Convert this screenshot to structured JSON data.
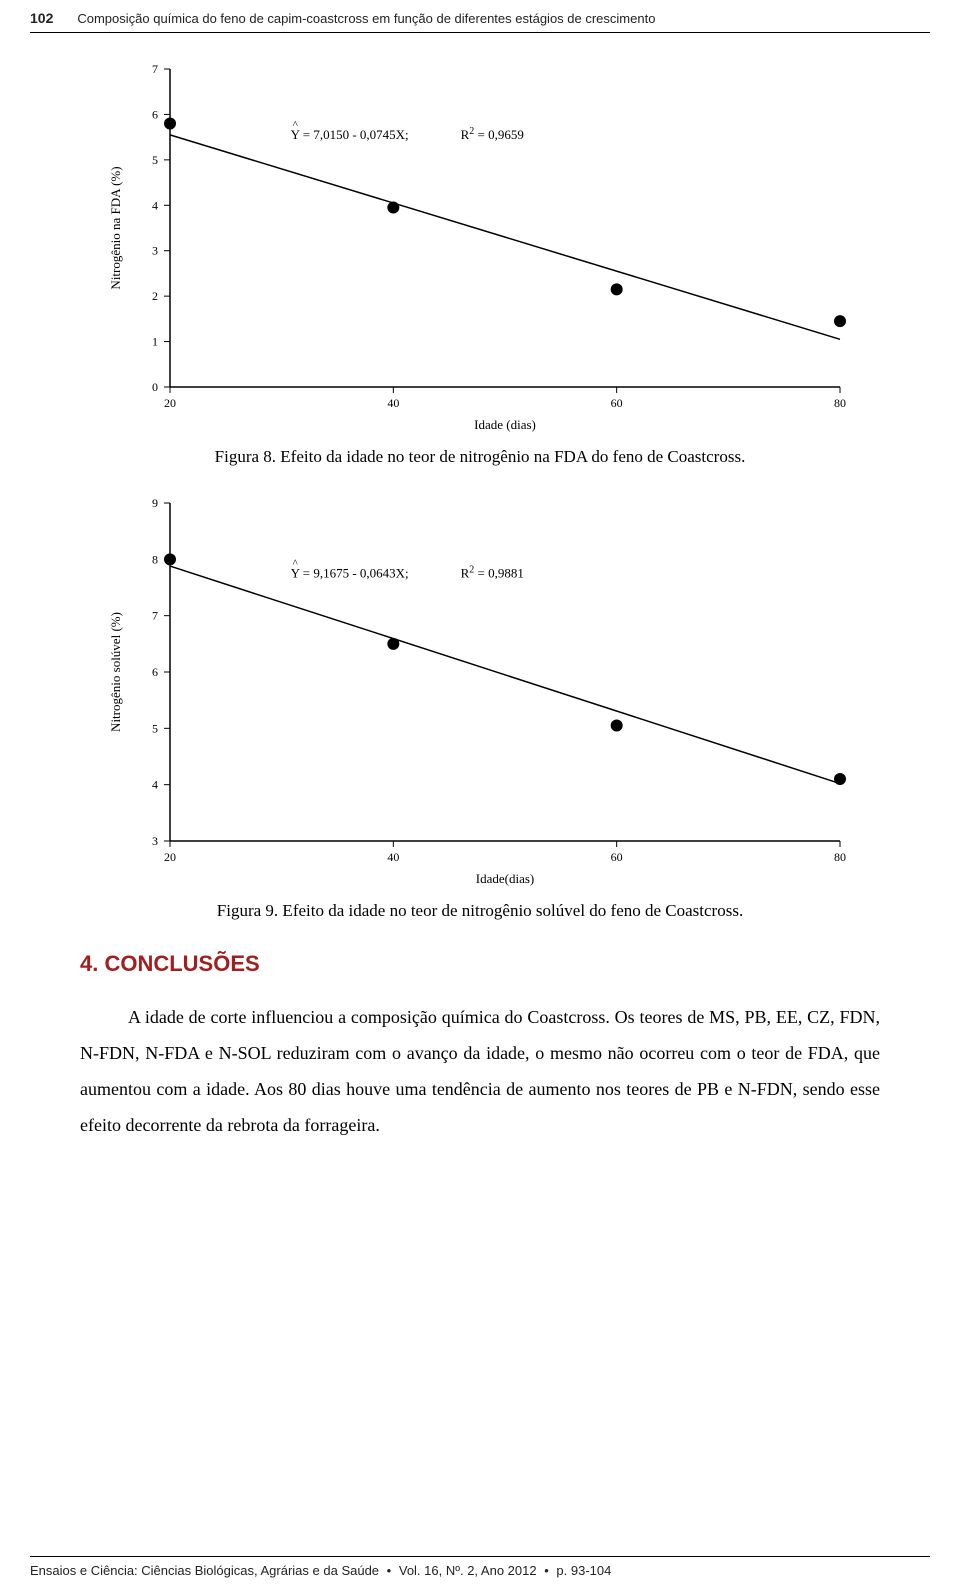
{
  "header": {
    "page_number": "102",
    "running_title": "Composição química do feno de capim-coastcross em função de diferentes estágios de crescimento"
  },
  "chart1": {
    "type": "scatter-with-regression-line",
    "title": "",
    "xlabel": "Idade (dias)",
    "ylabel": "Nitrogênio na FDA (%)",
    "label_fontsize": 13,
    "tick_fontsize": 12,
    "xlim": [
      20,
      80
    ],
    "ylim": [
      0,
      7
    ],
    "xticks": [
      20,
      40,
      60,
      80
    ],
    "yticks": [
      0,
      1,
      2,
      3,
      4,
      5,
      6,
      7
    ],
    "points": [
      {
        "x": 20,
        "y": 5.8
      },
      {
        "x": 40,
        "y": 3.95
      },
      {
        "x": 60,
        "y": 2.15
      },
      {
        "x": 80,
        "y": 1.45
      }
    ],
    "line": {
      "x1": 20,
      "y1": 5.55,
      "x2": 80,
      "y2": 1.05
    },
    "equation": "Y = 7,0150 - 0,0745X;",
    "hat_over": "Y",
    "r2_label": "R",
    "r2_sup": "2",
    "r2_rest": " = 0,9659",
    "eq_fontsize": 13,
    "marker_radius": 6,
    "marker_color": "#000000",
    "line_color": "#000000",
    "line_width": 1.5,
    "axis_color": "#000000",
    "background_color": "#ffffff",
    "caption": "Figura 8. Efeito da idade no teor de nitrogênio na FDA do feno de Coastcross."
  },
  "chart2": {
    "type": "scatter-with-regression-line",
    "title": "",
    "xlabel": "Idade(dias)",
    "ylabel": "Nitrogênio solúvel (%)",
    "label_fontsize": 13,
    "tick_fontsize": 12,
    "xlim": [
      20,
      80
    ],
    "ylim": [
      3,
      9
    ],
    "xticks": [
      20,
      40,
      60,
      80
    ],
    "yticks": [
      3,
      4,
      5,
      6,
      7,
      8,
      9
    ],
    "points": [
      {
        "x": 20,
        "y": 8.0
      },
      {
        "x": 40,
        "y": 6.5
      },
      {
        "x": 60,
        "y": 5.05
      },
      {
        "x": 80,
        "y": 4.1
      }
    ],
    "line": {
      "x1": 20,
      "y1": 7.88,
      "x2": 80,
      "y2": 4.02
    },
    "equation": "Y = 9,1675 - 0,0643X;",
    "hat_over": "Y",
    "r2_label": "R",
    "r2_sup": "2",
    "r2_rest": " = 0,9881",
    "eq_fontsize": 13,
    "marker_radius": 6,
    "marker_color": "#000000",
    "line_color": "#000000",
    "line_width": 1.5,
    "axis_color": "#000000",
    "background_color": "#ffffff",
    "caption": "Figura 9. Efeito da idade no teor de nitrogênio solúvel do feno de Coastcross."
  },
  "section": {
    "heading": "4. CONCLUSÕES",
    "heading_color": "#a02020",
    "paragraph": "A idade de corte influenciou a composição química do Coastcross. Os teores de MS, PB, EE, CZ, FDN, N-FDN, N-FDA e N-SOL reduziram com o avanço da idade, o mesmo não ocorreu com o teor de FDA, que aumentou com a idade. Aos 80 dias houve uma tendência de aumento nos teores de PB e N-FDN, sendo esse efeito decorrente da rebrota da forrageira."
  },
  "footer": {
    "journal": "Ensaios e Ciência: Ciências Biológicas, Agrárias e da Saúde",
    "vol": "Vol. 16, Nº. 2, Ano 2012",
    "pages": "p. 93-104",
    "separator": "•"
  }
}
